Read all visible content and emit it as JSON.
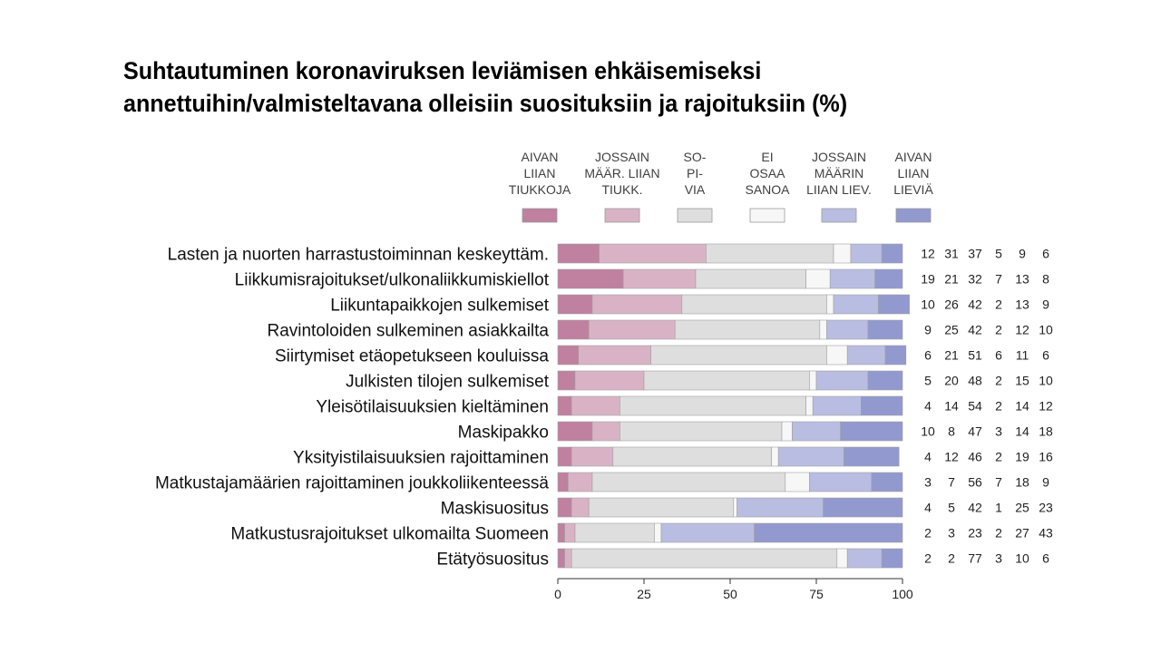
{
  "title": {
    "line1": "Suhtautuminen koronaviruksen leviämisen ehkäisemiseksi",
    "line2": "annettuihin/valmisteltavana olleisiin suosituksiin ja rajoituksiin (%)"
  },
  "chart_data": {
    "type": "bar",
    "orientation": "horizontal",
    "stacked": true,
    "title": "Suhtautuminen koronaviruksen leviämisen ehkäisemiseksi annettuihin/valmisteltavana olleisiin suosituksiin ja rajoituksiin (%)",
    "xlim": [
      0,
      100
    ],
    "xticks": [
      "0",
      "25",
      "50",
      "75",
      "100"
    ],
    "legend_position": "top",
    "categories": [
      "Lasten ja nuorten harrastustoiminnan keskeyttäm.",
      "Liikkumisrajoitukset/ulkonaliikkumiskiellot",
      "Liikuntapaikkojen sulkemiset",
      "Ravintoloiden sulkeminen asiakkailta",
      "Siirtymiset etäopetukseen kouluissa",
      "Julkisten tilojen sulkemiset",
      "Yleisötilaisuuksien kieltäminen",
      "Maskipakko",
      "Yksityistilaisuuksien rajoittaminen",
      "Matkustajamäärien rajoittaminen joukkoliikenteessä",
      "Maskisuositus",
      "Matkustusrajoitukset ulkomailta Suomeen",
      "Etätyösuositus"
    ],
    "series": [
      {
        "name": [
          "AIVAN",
          "LIIAN",
          "TIUKKOJA"
        ],
        "color": "#c0809f",
        "values": [
          12,
          19,
          10,
          9,
          6,
          5,
          4,
          10,
          4,
          3,
          4,
          2,
          2
        ]
      },
      {
        "name": [
          "JOSSAIN",
          "MÄÄR. LIIAN",
          "TIUKK."
        ],
        "color": "#d9b3c5",
        "values": [
          31,
          21,
          26,
          25,
          21,
          20,
          14,
          8,
          12,
          7,
          5,
          3,
          2
        ]
      },
      {
        "name": [
          "SO-",
          "PI-",
          "VIA"
        ],
        "color": "#dedede",
        "values": [
          37,
          32,
          42,
          42,
          51,
          48,
          54,
          47,
          46,
          56,
          42,
          23,
          77
        ]
      },
      {
        "name": [
          "EI",
          "OSAA",
          "SANOA"
        ],
        "color": "#f7f7f7",
        "values": [
          5,
          7,
          2,
          2,
          6,
          2,
          2,
          3,
          2,
          7,
          1,
          2,
          3
        ]
      },
      {
        "name": [
          "JOSSAIN",
          "MÄÄRIN",
          "LIIAN LIEV."
        ],
        "color": "#b9bde2",
        "values": [
          9,
          13,
          13,
          12,
          11,
          15,
          14,
          14,
          19,
          18,
          25,
          27,
          10
        ]
      },
      {
        "name": [
          "AIVAN",
          "LIIAN",
          "LIEVIÄ"
        ],
        "color": "#9199cf",
        "values": [
          6,
          8,
          9,
          10,
          6,
          10,
          12,
          18,
          16,
          9,
          23,
          43,
          6
        ]
      }
    ]
  }
}
